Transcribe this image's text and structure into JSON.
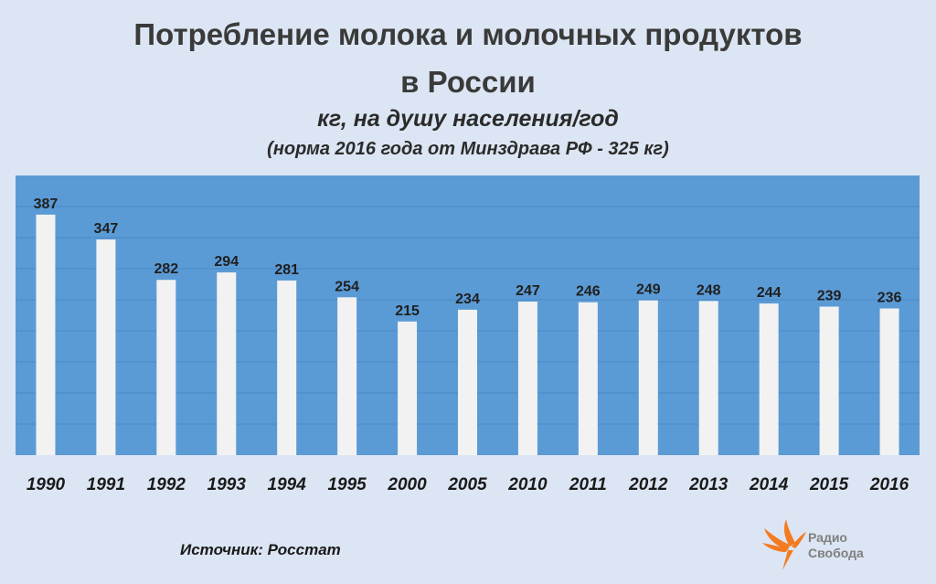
{
  "title_line1": "Потребление молока и молочных продуктов",
  "title_line2": "в России",
  "subtitle_line1": "кг, на душу населения/год",
  "subtitle_line2": "(норма 2016 года от Минздрава РФ - 325 кг)",
  "source": "Источник: Росстат",
  "logo": {
    "line1": "Радио",
    "line2": "Свобода"
  },
  "colors": {
    "page_bg": "#dce5f3",
    "plot_bg": "#5b9bd5",
    "bar": "#f2f2f2",
    "gridline": "#4a8acb",
    "logo_accent": "#f47b20"
  },
  "chart_data": {
    "type": "bar",
    "categories": [
      "1990",
      "1991",
      "1992",
      "1993",
      "1994",
      "1995",
      "2000",
      "2005",
      "2010",
      "2011",
      "2012",
      "2013",
      "2014",
      "2015",
      "2016"
    ],
    "values": [
      387,
      347,
      282,
      294,
      281,
      254,
      215,
      234,
      247,
      246,
      249,
      248,
      244,
      239,
      236
    ],
    "data_labels": [
      "387",
      "347",
      "282",
      "294",
      "281",
      "254",
      "215",
      "234",
      "247",
      "246",
      "249",
      "248",
      "244",
      "239",
      "236"
    ],
    "ylim": [
      0,
      450
    ],
    "grid": true,
    "legend": "none"
  }
}
